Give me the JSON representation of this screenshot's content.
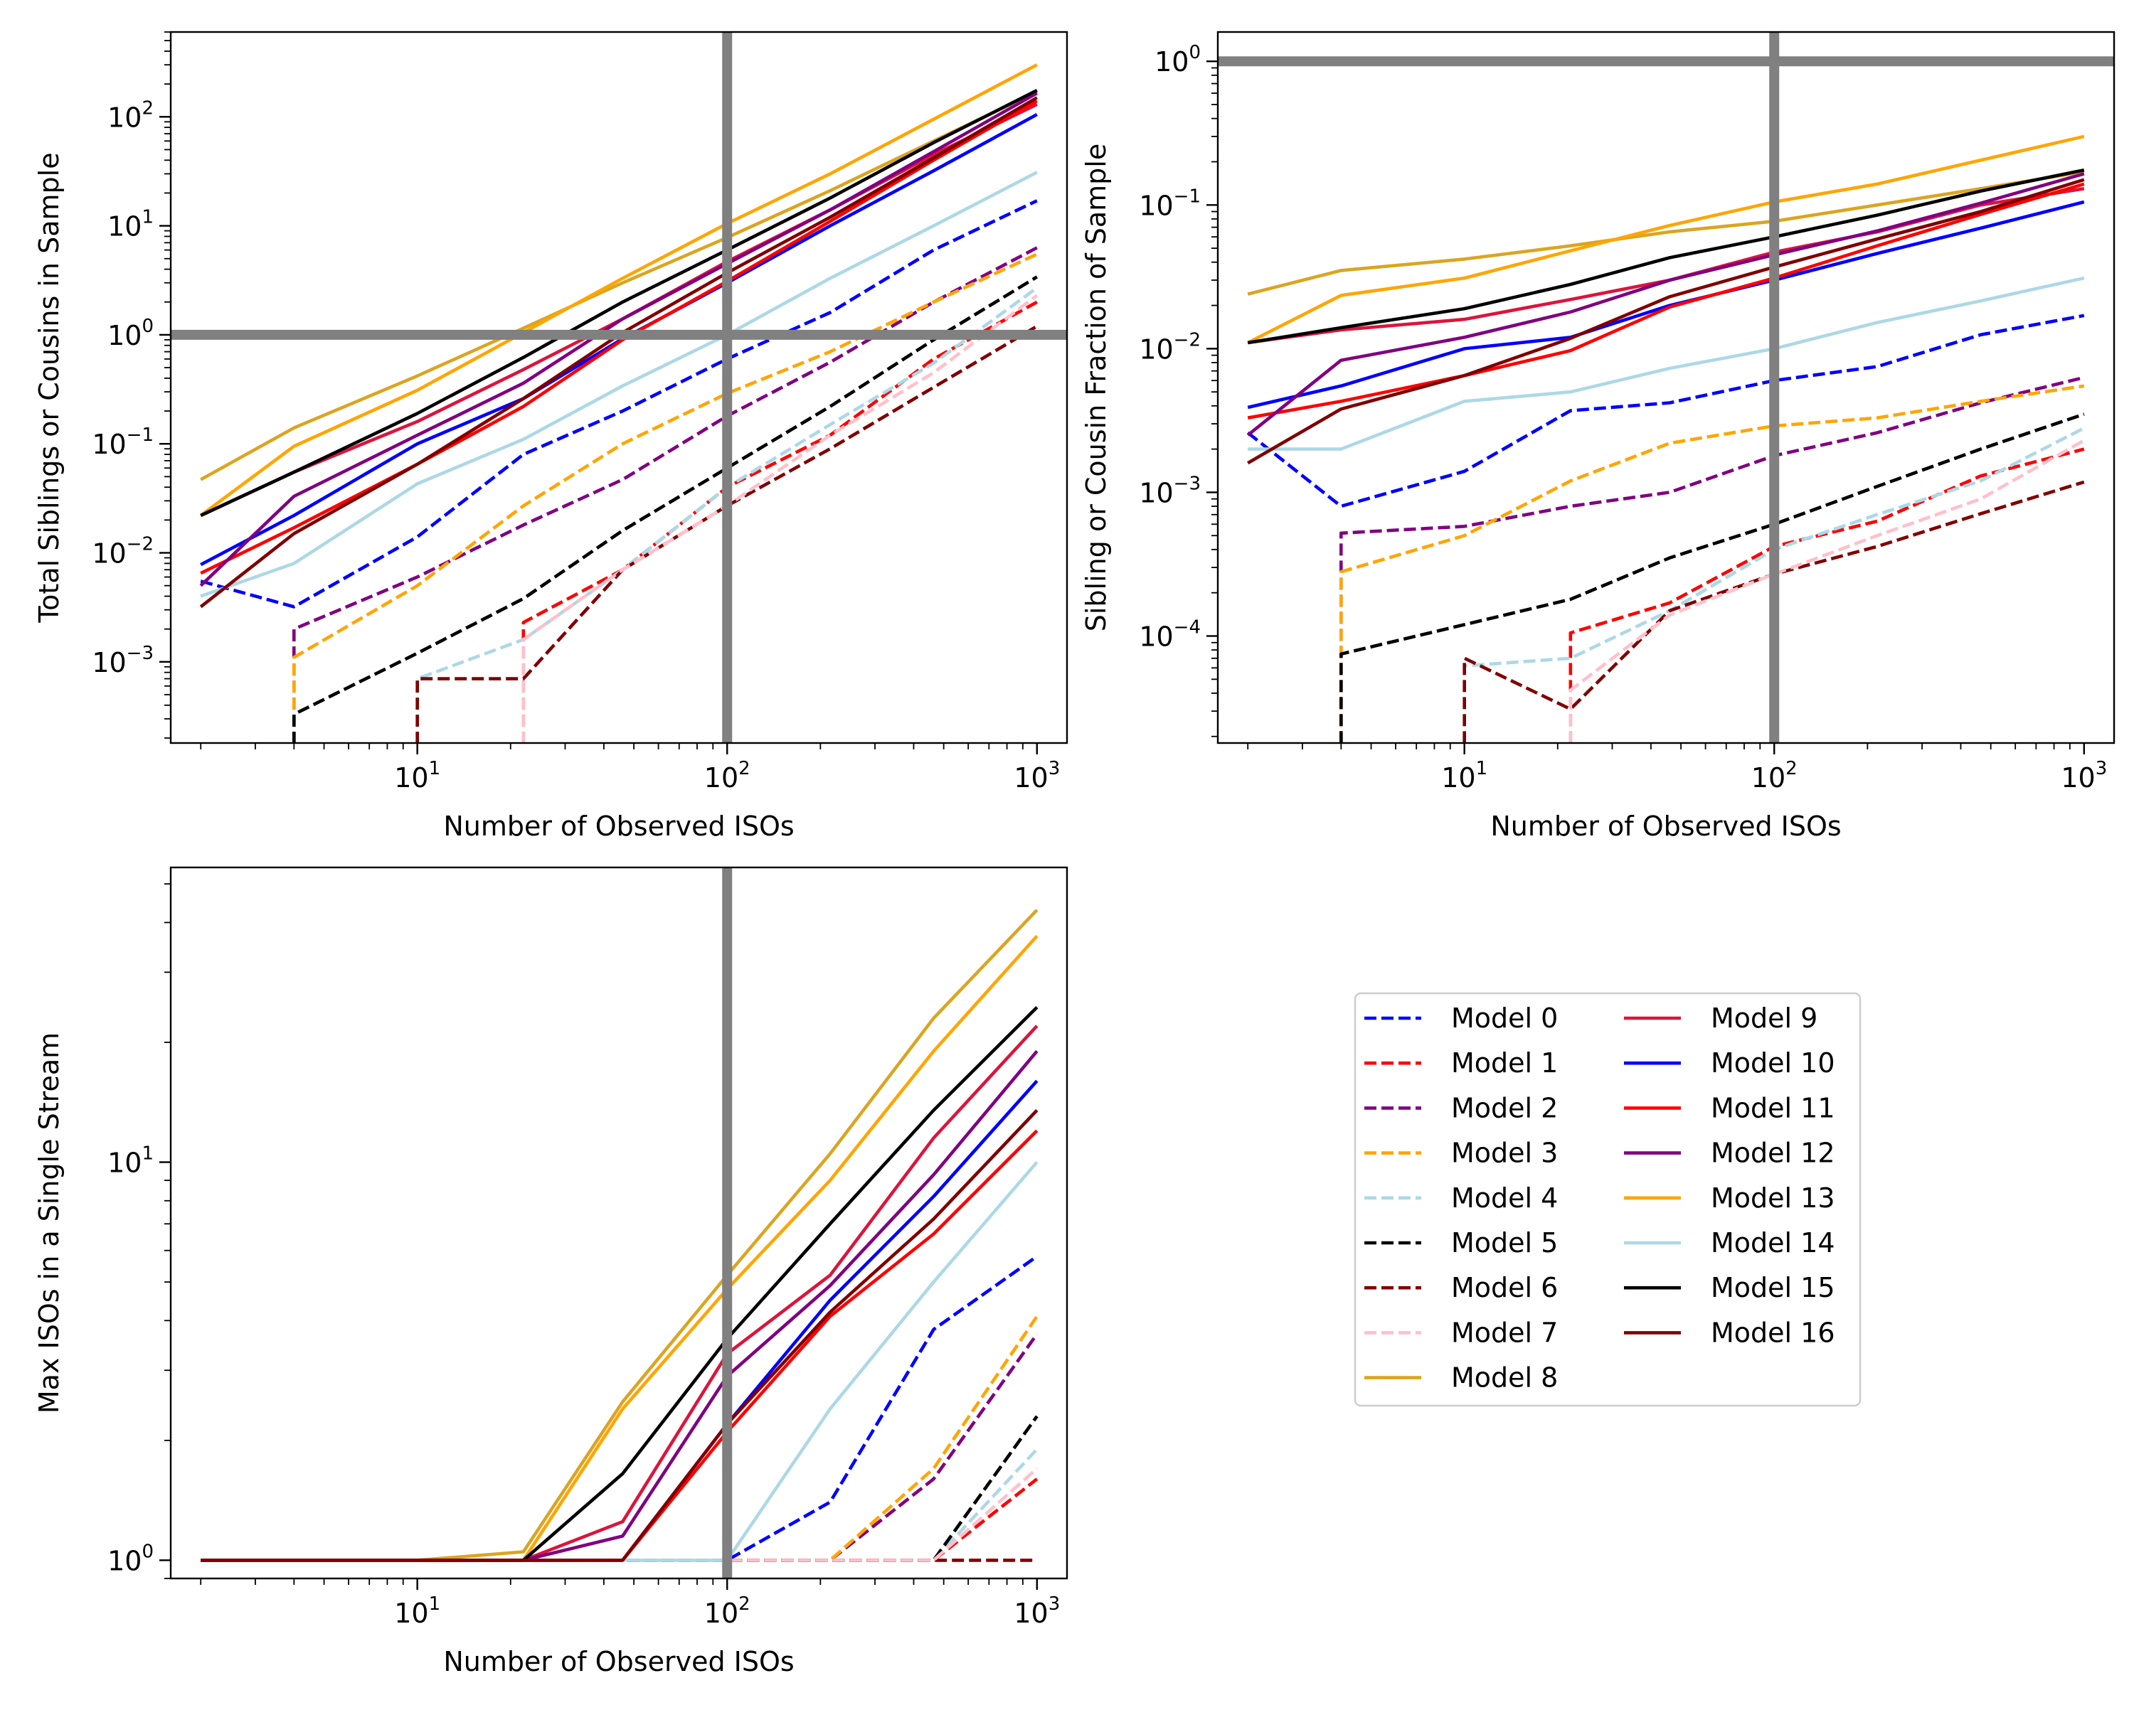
{
  "chart_data": [
    {
      "type": "line",
      "panel": "top-left",
      "xlabel": "Number of Observed ISOs",
      "ylabel": "Total Siblings or Cousins in Sample",
      "xscale": "log",
      "yscale": "log",
      "xlim": [
        1.6,
        1250
      ],
      "ylim": [
        0.00018,
        600
      ],
      "xticks": [
        {
          "v": 10,
          "b": "10",
          "e": "1"
        },
        {
          "v": 100,
          "b": "10",
          "e": "2"
        },
        {
          "v": 1000,
          "b": "10",
          "e": "3"
        }
      ],
      "yticks": [
        {
          "v": 0.001,
          "b": "10",
          "e": "−3"
        },
        {
          "v": 0.01,
          "b": "10",
          "e": "−2"
        },
        {
          "v": 0.1,
          "b": "10",
          "e": "−1"
        },
        {
          "v": 1,
          "b": "10",
          "e": "0"
        },
        {
          "v": 10,
          "b": "10",
          "e": "1"
        },
        {
          "v": 100,
          "b": "10",
          "e": "2"
        }
      ],
      "reference_lines": {
        "x": 100,
        "y": 1
      },
      "x": [
        2,
        4,
        10,
        22,
        46,
        100,
        215,
        464,
        1000
      ],
      "series": [
        {
          "model": 0,
          "values": [
            0.0055,
            0.0032,
            0.014,
            0.08,
            0.2,
            0.6,
            1.6,
            6,
            17
          ]
        },
        {
          "model": 1,
          "values": [
            null,
            null,
            null,
            0.0023,
            0.007,
            0.04,
            0.12,
            0.6,
            2
          ]
        },
        {
          "model": 2,
          "values": [
            null,
            0.002,
            0.006,
            0.018,
            0.047,
            0.18,
            0.56,
            2,
            6.3
          ]
        },
        {
          "model": 3,
          "values": [
            null,
            0.0011,
            0.005,
            0.027,
            0.1,
            0.29,
            0.7,
            2,
            5.5
          ]
        },
        {
          "model": 4,
          "values": [
            null,
            null,
            0.0007,
            0.0016,
            0.007,
            0.04,
            0.15,
            0.55,
            2.7
          ]
        },
        {
          "model": 5,
          "values": [
            null,
            0.00033,
            0.0012,
            0.0038,
            0.016,
            0.06,
            0.22,
            0.9,
            3.4
          ]
        },
        {
          "model": 6,
          "values": [
            null,
            null,
            0.0007,
            0.0007,
            0.007,
            0.027,
            0.09,
            0.33,
            1.2
          ]
        },
        {
          "model": 7,
          "values": [
            null,
            null,
            null,
            0.0016,
            0.007,
            0.027,
            0.12,
            0.45,
            2.3
          ]
        },
        {
          "model": 8,
          "values": [
            0.047,
            0.14,
            0.42,
            1.15,
            3,
            7.8,
            21,
            60,
            170
          ]
        },
        {
          "model": 9,
          "values": [
            0.022,
            0.055,
            0.16,
            0.48,
            1.4,
            4.7,
            14,
            45,
            130
          ]
        },
        {
          "model": 10,
          "values": [
            0.0078,
            0.022,
            0.1,
            0.26,
            0.92,
            3,
            10,
            32,
            105
          ]
        },
        {
          "model": 11,
          "values": [
            0.0065,
            0.017,
            0.065,
            0.22,
            0.9,
            3.1,
            11,
            40,
            140
          ]
        },
        {
          "model": 12,
          "values": [
            0.005,
            0.033,
            0.12,
            0.36,
            1.4,
            4.5,
            14,
            48,
            165
          ]
        },
        {
          "model": 13,
          "values": [
            0.022,
            0.095,
            0.31,
            1.05,
            3.3,
            10.5,
            30,
            95,
            300
          ]
        },
        {
          "model": 14,
          "values": [
            0.004,
            0.008,
            0.043,
            0.11,
            0.34,
            1,
            3.3,
            10,
            31
          ]
        },
        {
          "model": 15,
          "values": [
            0.022,
            0.055,
            0.19,
            0.62,
            2,
            6,
            18,
            58,
            175
          ]
        },
        {
          "model": 16,
          "values": [
            0.0032,
            0.015,
            0.065,
            0.26,
            1.05,
            3.7,
            12,
            42,
            150
          ]
        }
      ]
    },
    {
      "type": "line",
      "panel": "top-right",
      "xlabel": "Number of Observed ISOs",
      "ylabel": "Sibling or Cousin Fraction of Sample",
      "xscale": "log",
      "yscale": "log",
      "xlim": [
        1.6,
        1250
      ],
      "ylim": [
        1.8e-05,
        1.6
      ],
      "xticks": [
        {
          "v": 10,
          "b": "10",
          "e": "1"
        },
        {
          "v": 100,
          "b": "10",
          "e": "2"
        },
        {
          "v": 1000,
          "b": "10",
          "e": "3"
        }
      ],
      "yticks": [
        {
          "v": 0.0001,
          "b": "10",
          "e": "−4"
        },
        {
          "v": 0.001,
          "b": "10",
          "e": "−3"
        },
        {
          "v": 0.01,
          "b": "10",
          "e": "−2"
        },
        {
          "v": 0.1,
          "b": "10",
          "e": "−1"
        },
        {
          "v": 1,
          "b": "10",
          "e": "0"
        }
      ],
      "reference_lines": {
        "x": 100,
        "y": 1
      },
      "x": [
        2,
        4,
        10,
        22,
        46,
        100,
        215,
        464,
        1000
      ],
      "series": [
        {
          "model": 0,
          "values": [
            0.0026,
            0.0008,
            0.0014,
            0.0037,
            0.0042,
            0.006,
            0.0075,
            0.0125,
            0.017
          ]
        },
        {
          "model": 1,
          "values": [
            null,
            null,
            null,
            0.000105,
            0.00017,
            0.00042,
            0.00063,
            0.0013,
            0.002
          ]
        },
        {
          "model": 2,
          "values": [
            null,
            0.00052,
            0.00058,
            0.0008,
            0.001,
            0.0018,
            0.0026,
            0.0042,
            0.0063
          ]
        },
        {
          "model": 3,
          "values": [
            null,
            0.00028,
            0.0005,
            0.0012,
            0.0022,
            0.0029,
            0.0033,
            0.0043,
            0.0055
          ]
        },
        {
          "model": 4,
          "values": [
            null,
            null,
            6.2e-05,
            7e-05,
            0.00015,
            0.0004,
            0.0007,
            0.0012,
            0.0028
          ]
        },
        {
          "model": 5,
          "values": [
            null,
            7.5e-05,
            0.00012,
            0.00018,
            0.00035,
            0.0006,
            0.0011,
            0.002,
            0.0035
          ]
        },
        {
          "model": 6,
          "values": [
            null,
            null,
            7e-05,
            3.1e-05,
            0.00015,
            0.00027,
            0.00042,
            0.00071,
            0.00118
          ]
        },
        {
          "model": 7,
          "values": [
            null,
            null,
            null,
            4.2e-05,
            0.00014,
            0.00027,
            0.0005,
            0.0009,
            0.0023
          ]
        },
        {
          "model": 8,
          "values": [
            0.024,
            0.035,
            0.042,
            0.052,
            0.065,
            0.077,
            0.1,
            0.13,
            0.17
          ]
        },
        {
          "model": 9,
          "values": [
            0.011,
            0.0135,
            0.016,
            0.022,
            0.03,
            0.047,
            0.065,
            0.1,
            0.13
          ]
        },
        {
          "model": 10,
          "values": [
            0.0039,
            0.0055,
            0.01,
            0.012,
            0.02,
            0.03,
            0.046,
            0.069,
            0.105
          ]
        },
        {
          "model": 11,
          "values": [
            0.0033,
            0.0043,
            0.0065,
            0.0097,
            0.0195,
            0.031,
            0.052,
            0.086,
            0.14
          ]
        },
        {
          "model": 12,
          "values": [
            0.0025,
            0.0083,
            0.012,
            0.018,
            0.03,
            0.045,
            0.066,
            0.103,
            0.165
          ]
        },
        {
          "model": 13,
          "values": [
            0.011,
            0.0235,
            0.031,
            0.048,
            0.072,
            0.105,
            0.14,
            0.205,
            0.3
          ]
        },
        {
          "model": 14,
          "values": [
            0.002,
            0.002,
            0.0043,
            0.005,
            0.0073,
            0.01,
            0.0152,
            0.0215,
            0.031
          ]
        },
        {
          "model": 15,
          "values": [
            0.011,
            0.014,
            0.019,
            0.028,
            0.043,
            0.06,
            0.085,
            0.125,
            0.175
          ]
        },
        {
          "model": 16,
          "values": [
            0.0016,
            0.0038,
            0.0065,
            0.0118,
            0.023,
            0.037,
            0.058,
            0.09,
            0.15
          ]
        }
      ]
    },
    {
      "type": "line",
      "panel": "bottom-left",
      "xlabel": "Number of Observed ISOs",
      "ylabel": "Max ISOs in a Single Stream",
      "xscale": "log",
      "yscale": "log",
      "xlim": [
        1.6,
        1250
      ],
      "ylim": [
        0.9,
        55
      ],
      "xticks": [
        {
          "v": 10,
          "b": "10",
          "e": "1"
        },
        {
          "v": 100,
          "b": "10",
          "e": "2"
        },
        {
          "v": 1000,
          "b": "10",
          "e": "3"
        }
      ],
      "yticks": [
        {
          "v": 1,
          "b": "10",
          "e": "0"
        },
        {
          "v": 10,
          "b": "10",
          "e": "1"
        }
      ],
      "reference_lines": {
        "x": 100
      },
      "x": [
        2,
        4,
        10,
        22,
        46,
        100,
        215,
        464,
        1000
      ],
      "series": [
        {
          "model": 0,
          "values": [
            1,
            1,
            1,
            1,
            1,
            1,
            1.4,
            3.8,
            5.8
          ]
        },
        {
          "model": 1,
          "values": [
            1,
            1,
            1,
            1,
            1,
            1,
            1,
            1,
            1.6
          ]
        },
        {
          "model": 2,
          "values": [
            1,
            1,
            1,
            1,
            1,
            1,
            1,
            1.6,
            3.7
          ]
        },
        {
          "model": 3,
          "values": [
            1,
            1,
            1,
            1,
            1,
            1,
            1,
            1.7,
            4.1
          ]
        },
        {
          "model": 4,
          "values": [
            1,
            1,
            1,
            1,
            1,
            1,
            1,
            1,
            1.9
          ]
        },
        {
          "model": 5,
          "values": [
            1,
            1,
            1,
            1,
            1,
            1,
            1,
            1,
            2.3
          ]
        },
        {
          "model": 6,
          "values": [
            1,
            1,
            1,
            1,
            1,
            1,
            1,
            1,
            1
          ]
        },
        {
          "model": 7,
          "values": [
            1,
            1,
            1,
            1,
            1,
            1,
            1,
            1,
            1.7
          ]
        },
        {
          "model": 8,
          "values": [
            1,
            1,
            1,
            1.05,
            2.5,
            5.2,
            10.5,
            23,
            43
          ]
        },
        {
          "model": 9,
          "values": [
            1,
            1,
            1,
            1,
            1.25,
            3.3,
            5.2,
            11.5,
            22
          ]
        },
        {
          "model": 10,
          "values": [
            1,
            1,
            1,
            1,
            1,
            2.2,
            4.5,
            8.2,
            16
          ]
        },
        {
          "model": 11,
          "values": [
            1,
            1,
            1,
            1,
            1,
            2.1,
            4.1,
            6.6,
            12
          ]
        },
        {
          "model": 12,
          "values": [
            1,
            1,
            1,
            1,
            1.15,
            2.9,
            4.9,
            9.3,
            19
          ]
        },
        {
          "model": 13,
          "values": [
            1,
            1,
            1,
            1,
            2.4,
            4.8,
            9,
            19,
            37
          ]
        },
        {
          "model": 14,
          "values": [
            1,
            1,
            1,
            1,
            1,
            1,
            2.4,
            5,
            10
          ]
        },
        {
          "model": 15,
          "values": [
            1,
            1,
            1,
            1,
            1.65,
            3.6,
            7,
            13.5,
            24.5
          ]
        },
        {
          "model": 16,
          "values": [
            1,
            1,
            1,
            1,
            1,
            2.2,
            4.2,
            7.2,
            13.5
          ]
        }
      ]
    }
  ],
  "legend": {
    "position": "lower-right",
    "entries": [
      {
        "label": "Model 0",
        "color": "#0000ff",
        "dash": true
      },
      {
        "label": "Model 1",
        "color": "#ff0000",
        "dash": true
      },
      {
        "label": "Model 2",
        "color": "#800080",
        "dash": true
      },
      {
        "label": "Model 3",
        "color": "#ffa500",
        "dash": true
      },
      {
        "label": "Model 4",
        "color": "#add8e6",
        "dash": true
      },
      {
        "label": "Model 5",
        "color": "#000000",
        "dash": true
      },
      {
        "label": "Model 6",
        "color": "#800000",
        "dash": true
      },
      {
        "label": "Model 7",
        "color": "#ffc0cb",
        "dash": true
      },
      {
        "label": "Model 8",
        "color": "#daa520",
        "dash": false
      },
      {
        "label": "Model 9",
        "color": "#dc143c",
        "dash": false
      },
      {
        "label": "Model 10",
        "color": "#0000ff",
        "dash": false
      },
      {
        "label": "Model 11",
        "color": "#ff0000",
        "dash": false
      },
      {
        "label": "Model 12",
        "color": "#800080",
        "dash": false
      },
      {
        "label": "Model 13",
        "color": "#ffa500",
        "dash": false
      },
      {
        "label": "Model 14",
        "color": "#add8e6",
        "dash": false
      },
      {
        "label": "Model 15",
        "color": "#000000",
        "dash": false
      },
      {
        "label": "Model 16",
        "color": "#800000",
        "dash": false
      }
    ]
  },
  "colors": {
    "reference_line": "#808080",
    "axes": "#000000",
    "legend_border": "#cccccc"
  }
}
